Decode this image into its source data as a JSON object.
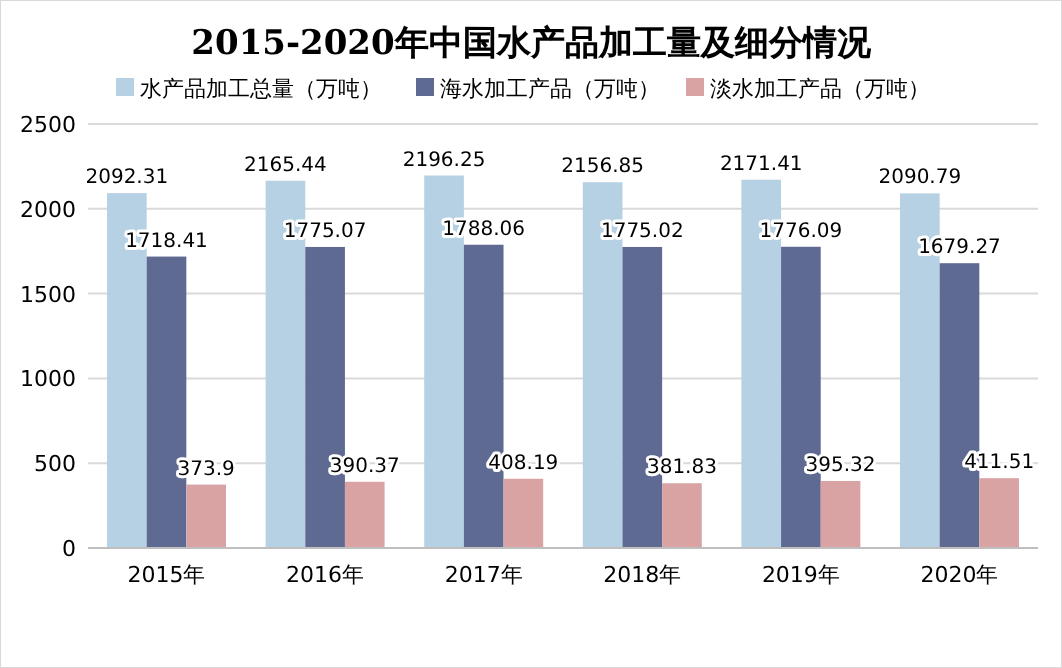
{
  "chart_data": {
    "type": "bar",
    "title": "2015-2020年中国水产品加工量及细分情况",
    "categories": [
      "2015年",
      "2016年",
      "2017年",
      "2018年",
      "2019年",
      "2020年"
    ],
    "series": [
      {
        "name": "水产品加工总量（万吨）",
        "color": "#b5d1e3",
        "values": [
          2092.31,
          2165.44,
          2196.25,
          2156.85,
          2171.41,
          2090.79
        ]
      },
      {
        "name": "海水加工产品（万吨）",
        "color": "#5f6a92",
        "values": [
          1718.41,
          1775.07,
          1788.06,
          1775.02,
          1776.09,
          1679.27
        ]
      },
      {
        "name": "淡水加工产品（万吨）",
        "color": "#d8a3a2",
        "values": [
          373.9,
          390.37,
          408.19,
          381.83,
          395.32,
          411.51
        ]
      }
    ],
    "ylim": [
      0,
      2500
    ],
    "yticks": [
      0,
      500,
      1000,
      1500,
      2000,
      2500
    ],
    "grid": "y",
    "legend": "top",
    "data_labels": true
  }
}
